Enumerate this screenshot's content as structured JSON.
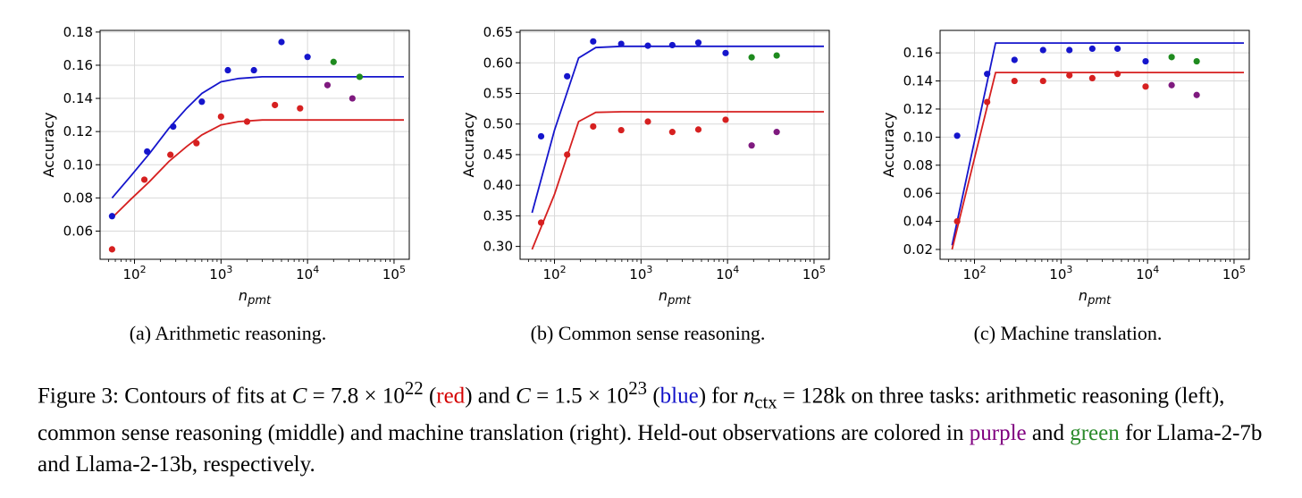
{
  "colors": {
    "red": "#d62020",
    "blue": "#1515cc",
    "purple": "#7f1a7f",
    "green": "#1e8a1e",
    "grid": "#d9d9d9"
  },
  "chart_data": [
    {
      "type": "scatter",
      "caption": "(a) Arithmetic reasoning.",
      "xlabel": "n_pmt",
      "ylabel": "Accuracy",
      "xscale": "log",
      "xlim": [
        40,
        150000
      ],
      "ylim": [
        0.043,
        0.181
      ],
      "yticks": [
        0.06,
        0.08,
        0.1,
        0.12,
        0.14,
        0.16,
        0.18
      ],
      "ytick_labels": [
        "0.06",
        "0.08",
        "0.10",
        "0.12",
        "0.14",
        "0.16",
        "0.18"
      ],
      "xticks": [
        100,
        1000,
        10000,
        100000
      ],
      "xtick_labels": [
        "10^2",
        "10^3",
        "10^4",
        "10^5"
      ],
      "grid": true,
      "fits": [
        {
          "color": "blue",
          "points": [
            [
              55,
              0.08
            ],
            [
              90,
              0.093
            ],
            [
              150,
              0.107
            ],
            [
              250,
              0.122
            ],
            [
              400,
              0.134
            ],
            [
              600,
              0.143
            ],
            [
              1000,
              0.15
            ],
            [
              1600,
              0.152
            ],
            [
              3000,
              0.153
            ],
            [
              130000,
              0.153
            ]
          ]
        },
        {
          "color": "red",
          "points": [
            [
              55,
              0.068
            ],
            [
              90,
              0.079
            ],
            [
              150,
              0.09
            ],
            [
              250,
              0.102
            ],
            [
              400,
              0.111
            ],
            [
              600,
              0.118
            ],
            [
              1000,
              0.124
            ],
            [
              1600,
              0.126
            ],
            [
              3000,
              0.127
            ],
            [
              130000,
              0.127
            ]
          ]
        }
      ],
      "points": [
        {
          "x": 55,
          "y": 0.049,
          "color": "red"
        },
        {
          "x": 55,
          "y": 0.069,
          "color": "blue"
        },
        {
          "x": 130,
          "y": 0.091,
          "color": "red"
        },
        {
          "x": 140,
          "y": 0.108,
          "color": "blue"
        },
        {
          "x": 260,
          "y": 0.106,
          "color": "red"
        },
        {
          "x": 280,
          "y": 0.123,
          "color": "blue"
        },
        {
          "x": 520,
          "y": 0.113,
          "color": "red"
        },
        {
          "x": 600,
          "y": 0.138,
          "color": "blue"
        },
        {
          "x": 1000,
          "y": 0.129,
          "color": "red"
        },
        {
          "x": 1200,
          "y": 0.157,
          "color": "blue"
        },
        {
          "x": 2000,
          "y": 0.126,
          "color": "red"
        },
        {
          "x": 2400,
          "y": 0.157,
          "color": "blue"
        },
        {
          "x": 4200,
          "y": 0.136,
          "color": "red"
        },
        {
          "x": 5000,
          "y": 0.174,
          "color": "blue"
        },
        {
          "x": 8200,
          "y": 0.134,
          "color": "red"
        },
        {
          "x": 10000,
          "y": 0.165,
          "color": "blue"
        },
        {
          "x": 20000,
          "y": 0.162,
          "color": "green"
        },
        {
          "x": 17000,
          "y": 0.148,
          "color": "purple"
        },
        {
          "x": 33000,
          "y": 0.14,
          "color": "purple"
        },
        {
          "x": 40000,
          "y": 0.153,
          "color": "green"
        }
      ]
    },
    {
      "type": "scatter",
      "caption": "(b) Common sense reasoning.",
      "xlabel": "n_pmt",
      "ylabel": "Accuracy",
      "xscale": "log",
      "xlim": [
        40,
        150000
      ],
      "ylim": [
        0.279,
        0.653
      ],
      "yticks": [
        0.3,
        0.35,
        0.4,
        0.45,
        0.5,
        0.55,
        0.6,
        0.65
      ],
      "ytick_labels": [
        "0.30",
        "0.35",
        "0.40",
        "0.45",
        "0.50",
        "0.55",
        "0.60",
        "0.65"
      ],
      "xticks": [
        100,
        1000,
        10000,
        100000
      ],
      "xtick_labels": [
        "10^2",
        "10^3",
        "10^4",
        "10^5"
      ],
      "grid": true,
      "fits": [
        {
          "color": "blue",
          "points": [
            [
              55,
              0.355
            ],
            [
              100,
              0.49
            ],
            [
              190,
              0.608
            ],
            [
              300,
              0.625
            ],
            [
              600,
              0.627
            ],
            [
              130000,
              0.627
            ]
          ]
        },
        {
          "color": "red",
          "points": [
            [
              55,
              0.295
            ],
            [
              100,
              0.385
            ],
            [
              190,
              0.504
            ],
            [
              300,
              0.519
            ],
            [
              600,
              0.52
            ],
            [
              130000,
              0.52
            ]
          ]
        }
      ],
      "points": [
        {
          "x": 70,
          "y": 0.339,
          "color": "red"
        },
        {
          "x": 70,
          "y": 0.48,
          "color": "blue"
        },
        {
          "x": 140,
          "y": 0.45,
          "color": "red"
        },
        {
          "x": 140,
          "y": 0.578,
          "color": "blue"
        },
        {
          "x": 280,
          "y": 0.496,
          "color": "red"
        },
        {
          "x": 280,
          "y": 0.635,
          "color": "blue"
        },
        {
          "x": 590,
          "y": 0.49,
          "color": "red"
        },
        {
          "x": 590,
          "y": 0.631,
          "color": "blue"
        },
        {
          "x": 1200,
          "y": 0.504,
          "color": "red"
        },
        {
          "x": 1200,
          "y": 0.628,
          "color": "blue"
        },
        {
          "x": 2300,
          "y": 0.487,
          "color": "red"
        },
        {
          "x": 2300,
          "y": 0.629,
          "color": "blue"
        },
        {
          "x": 4600,
          "y": 0.491,
          "color": "red"
        },
        {
          "x": 4600,
          "y": 0.633,
          "color": "blue"
        },
        {
          "x": 9500,
          "y": 0.507,
          "color": "red"
        },
        {
          "x": 9500,
          "y": 0.616,
          "color": "blue"
        },
        {
          "x": 19000,
          "y": 0.465,
          "color": "purple"
        },
        {
          "x": 19000,
          "y": 0.609,
          "color": "green"
        },
        {
          "x": 37000,
          "y": 0.487,
          "color": "purple"
        },
        {
          "x": 37000,
          "y": 0.612,
          "color": "green"
        }
      ]
    },
    {
      "type": "scatter",
      "caption": "(c) Machine translation.",
      "xlabel": "n_pmt",
      "ylabel": "Accuracy",
      "xscale": "log",
      "xlim": [
        40,
        150000
      ],
      "ylim": [
        0.013,
        0.176
      ],
      "yticks": [
        0.02,
        0.04,
        0.06,
        0.08,
        0.1,
        0.12,
        0.14,
        0.16
      ],
      "ytick_labels": [
        "0.02",
        "0.04",
        "0.06",
        "0.08",
        "0.10",
        "0.12",
        "0.14",
        "0.16"
      ],
      "xticks": [
        100,
        1000,
        10000,
        100000
      ],
      "xtick_labels": [
        "10^2",
        "10^3",
        "10^4",
        "10^5"
      ],
      "grid": true,
      "fits": [
        {
          "color": "blue",
          "points": [
            [
              55,
              0.023
            ],
            [
              175,
              0.167
            ],
            [
              130000,
              0.167
            ]
          ]
        },
        {
          "color": "red",
          "points": [
            [
              55,
              0.02
            ],
            [
              175,
              0.146
            ],
            [
              130000,
              0.146
            ]
          ]
        }
      ],
      "points": [
        {
          "x": 63,
          "y": 0.04,
          "color": "red"
        },
        {
          "x": 63,
          "y": 0.101,
          "color": "blue"
        },
        {
          "x": 140,
          "y": 0.125,
          "color": "red"
        },
        {
          "x": 140,
          "y": 0.145,
          "color": "blue"
        },
        {
          "x": 290,
          "y": 0.14,
          "color": "red"
        },
        {
          "x": 290,
          "y": 0.155,
          "color": "blue"
        },
        {
          "x": 620,
          "y": 0.14,
          "color": "red"
        },
        {
          "x": 620,
          "y": 0.162,
          "color": "blue"
        },
        {
          "x": 1250,
          "y": 0.144,
          "color": "red"
        },
        {
          "x": 1250,
          "y": 0.162,
          "color": "blue"
        },
        {
          "x": 2300,
          "y": 0.142,
          "color": "red"
        },
        {
          "x": 2300,
          "y": 0.163,
          "color": "blue"
        },
        {
          "x": 4500,
          "y": 0.145,
          "color": "red"
        },
        {
          "x": 4500,
          "y": 0.163,
          "color": "blue"
        },
        {
          "x": 9500,
          "y": 0.136,
          "color": "red"
        },
        {
          "x": 9500,
          "y": 0.154,
          "color": "blue"
        },
        {
          "x": 19000,
          "y": 0.137,
          "color": "purple"
        },
        {
          "x": 19000,
          "y": 0.157,
          "color": "green"
        },
        {
          "x": 37000,
          "y": 0.13,
          "color": "purple"
        },
        {
          "x": 37000,
          "y": 0.154,
          "color": "green"
        }
      ]
    }
  ],
  "figure_caption": {
    "label": "Figure 3:",
    "text1": "Contours of fits at",
    "c1_var": "C",
    "c1_value": "= 7.8 × 10",
    "c1_exp": "22",
    "red_word": "red",
    "and1": "and",
    "c2_var": "C",
    "c2_value": "= 1.5 × 10",
    "c2_exp": "23",
    "blue_word": "blue",
    "for_text": "for",
    "n_var": "n",
    "n_sub": "ctx",
    "n_value": "= 128k",
    "text2": "on three tasks: arithmetic reasoning (left), common sense reasoning (middle) and machine translation (right). Held-out observations are colored in",
    "purple_word": "purple",
    "and2": "and",
    "green_word": "green",
    "text3": "for Llama-2-7b and Llama-2-13b, respectively."
  }
}
